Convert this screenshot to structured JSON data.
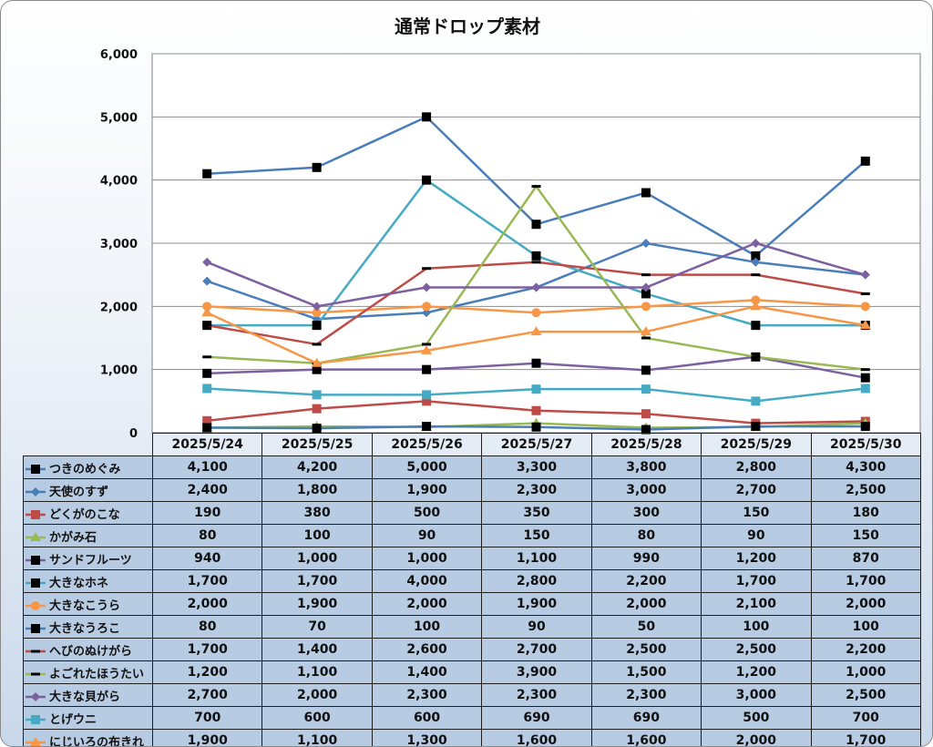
{
  "chart_data": {
    "type": "line",
    "title": "通常ドロップ素材",
    "categories": [
      "2025/5/24",
      "2025/5/25",
      "2025/5/26",
      "2025/5/27",
      "2025/5/28",
      "2025/5/29",
      "2025/5/30"
    ],
    "ylim": [
      0,
      6000
    ],
    "yticks": [
      "0",
      "1,000",
      "2,000",
      "3,000",
      "4,000",
      "5,000",
      "6,000"
    ],
    "grid": true,
    "legend": "data-table-left",
    "series": [
      {
        "name": "つきのめぐみ",
        "color": "#4a7ebb",
        "marker": "square-black",
        "values": [
          4100,
          4200,
          5000,
          3300,
          3800,
          2800,
          4300
        ],
        "labels": [
          "4,100",
          "4,200",
          "5,000",
          "3,300",
          "3,800",
          "2,800",
          "4,300"
        ]
      },
      {
        "name": "天使のすず",
        "color": "#4a7ebb",
        "marker": "diamond",
        "values": [
          2400,
          1800,
          1900,
          2300,
          3000,
          2700,
          2500
        ],
        "labels": [
          "2,400",
          "1,800",
          "1,900",
          "2,300",
          "3,000",
          "2,700",
          "2,500"
        ]
      },
      {
        "name": "どくがのこな",
        "color": "#be4b48",
        "marker": "square",
        "values": [
          190,
          380,
          500,
          350,
          300,
          150,
          180
        ],
        "labels": [
          "190",
          "380",
          "500",
          "350",
          "300",
          "150",
          "180"
        ]
      },
      {
        "name": "かがみ石",
        "color": "#98b954",
        "marker": "triangle",
        "values": [
          80,
          100,
          90,
          150,
          80,
          90,
          150
        ],
        "labels": [
          "80",
          "100",
          "90",
          "150",
          "80",
          "90",
          "150"
        ]
      },
      {
        "name": "サンドフルーツ",
        "color": "#7d60a0",
        "marker": "square-black",
        "values": [
          940,
          1000,
          1000,
          1100,
          990,
          1200,
          870
        ],
        "labels": [
          "940",
          "1,000",
          "1,000",
          "1,100",
          "990",
          "1,200",
          "870"
        ]
      },
      {
        "name": "大きなホネ",
        "color": "#46aac5",
        "marker": "square-black",
        "values": [
          1700,
          1700,
          4000,
          2800,
          2200,
          1700,
          1700
        ],
        "labels": [
          "1,700",
          "1,700",
          "4,000",
          "2,800",
          "2,200",
          "1,700",
          "1,700"
        ]
      },
      {
        "name": "大きなこうら",
        "color": "#f79646",
        "marker": "circle",
        "values": [
          2000,
          1900,
          2000,
          1900,
          2000,
          2100,
          2000
        ],
        "labels": [
          "2,000",
          "1,900",
          "2,000",
          "1,900",
          "2,000",
          "2,100",
          "2,000"
        ]
      },
      {
        "name": "大きなうろこ",
        "color": "#4a7ebb",
        "marker": "square-black",
        "values": [
          80,
          70,
          100,
          90,
          50,
          100,
          100
        ],
        "labels": [
          "80",
          "70",
          "100",
          "90",
          "50",
          "100",
          "100"
        ]
      },
      {
        "name": "へびのぬけがら",
        "color": "#be4b48",
        "marker": "dash",
        "values": [
          1700,
          1400,
          2600,
          2700,
          2500,
          2500,
          2200
        ],
        "labels": [
          "1,700",
          "1,400",
          "2,600",
          "2,700",
          "2,500",
          "2,500",
          "2,200"
        ]
      },
      {
        "name": "よごれたほうたい",
        "color": "#98b954",
        "marker": "dash",
        "values": [
          1200,
          1100,
          1400,
          3900,
          1500,
          1200,
          1000
        ],
        "labels": [
          "1,200",
          "1,100",
          "1,400",
          "3,900",
          "1,500",
          "1,200",
          "1,000"
        ]
      },
      {
        "name": "大きな貝がら",
        "color": "#7d60a0",
        "marker": "diamond",
        "values": [
          2700,
          2000,
          2300,
          2300,
          2300,
          3000,
          2500
        ],
        "labels": [
          "2,700",
          "2,000",
          "2,300",
          "2,300",
          "2,300",
          "3,000",
          "2,500"
        ]
      },
      {
        "name": "とげウニ",
        "color": "#46aac5",
        "marker": "square",
        "values": [
          700,
          600,
          600,
          690,
          690,
          500,
          700
        ],
        "labels": [
          "700",
          "600",
          "600",
          "690",
          "690",
          "500",
          "700"
        ]
      },
      {
        "name": "にじいろの布きれ",
        "color": "#f79646",
        "marker": "triangle",
        "values": [
          1900,
          1100,
          1300,
          1600,
          1600,
          2000,
          1700
        ],
        "labels": [
          "1,900",
          "1,100",
          "1,300",
          "1,600",
          "1,600",
          "2,000",
          "1,700"
        ]
      }
    ]
  }
}
